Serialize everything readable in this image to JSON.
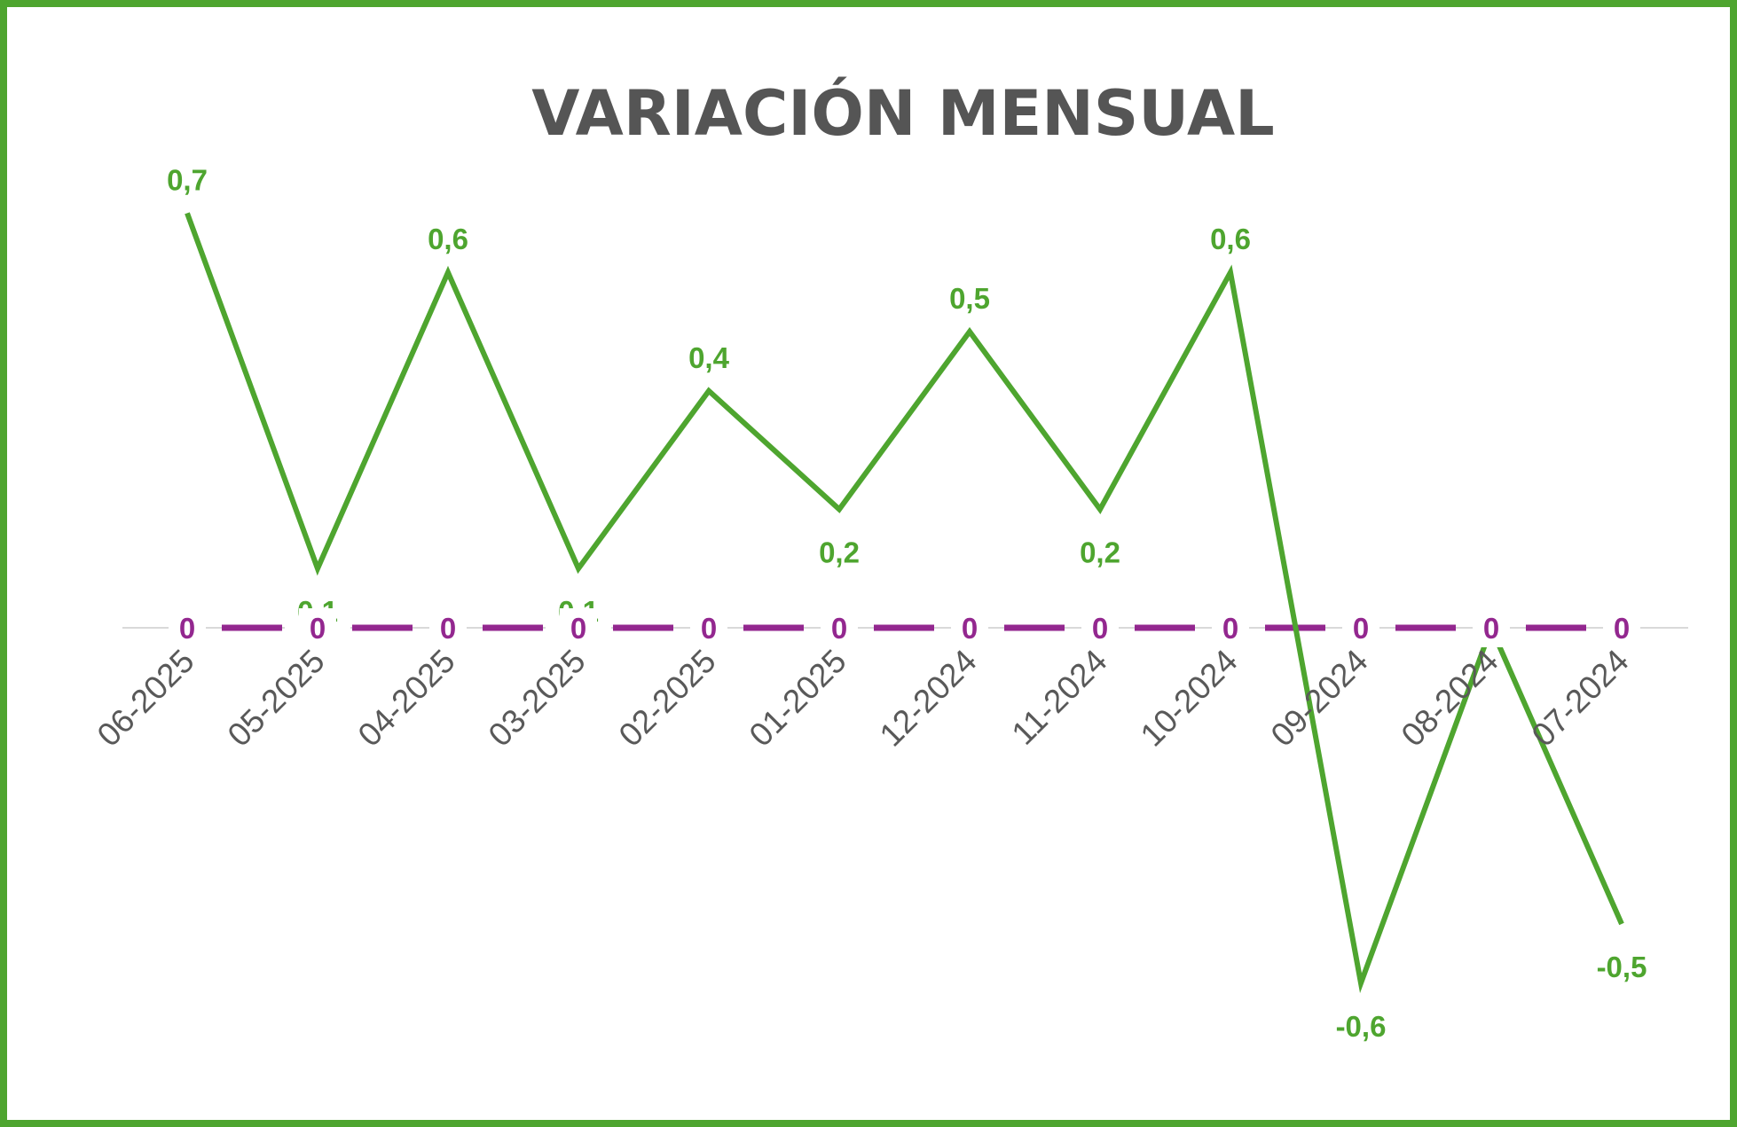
{
  "chart_data": {
    "type": "line",
    "title": "VARIACIÓN MENSUAL",
    "xlabel": "",
    "ylabel": "",
    "categories": [
      "06-2025",
      "05-2025",
      "04-2025",
      "03-2025",
      "02-2025",
      "01-2025",
      "12-2024",
      "11-2024",
      "10-2024",
      "09-2024",
      "08-2024",
      "07-2024"
    ],
    "series": [
      {
        "values": [
          0.7,
          0.1,
          0.6,
          0.1,
          0.4,
          0.2,
          0.5,
          0.2,
          0.6,
          -0.6,
          0,
          -0.5
        ],
        "labels": [
          "0,7",
          "0,1",
          "0,6",
          "0,1",
          "0,4",
          "0,2",
          "0,5",
          "0,2",
          "0,6",
          "-0,6",
          "",
          "-0,5"
        ],
        "color": "#4ea52f",
        "style": "solid"
      },
      {
        "values": [
          0,
          0,
          0,
          0,
          0,
          0,
          0,
          0,
          0,
          0,
          0,
          0
        ],
        "labels": [
          "0",
          "0",
          "0",
          "0",
          "0",
          "0",
          "0",
          "0",
          "0",
          "0",
          "0",
          "0"
        ],
        "color": "#93278f",
        "style": "dashed"
      }
    ],
    "ylim": [
      -0.75,
      0.8
    ],
    "grid": false,
    "legend": "none"
  },
  "colors": {
    "border": "#4ea52f",
    "title": "#555555",
    "axis": "#d9d9d9",
    "tick": "#595959"
  }
}
